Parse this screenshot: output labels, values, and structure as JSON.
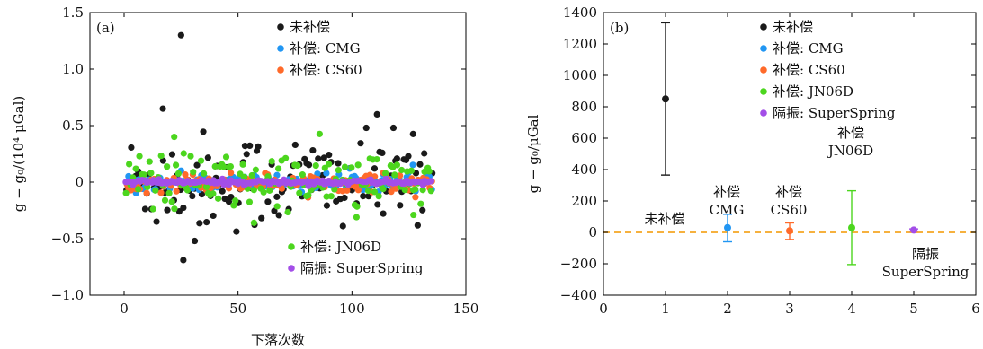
{
  "chart_data": [
    {
      "type": "scatter",
      "panel_label": "(a)",
      "xlabel": "下落次数",
      "ylabel": "g − g₀/(10⁴ μGal)",
      "xlim": [
        -15,
        150
      ],
      "ylim": [
        -1.0,
        1.5
      ],
      "xticks": [
        0,
        50,
        100,
        150
      ],
      "yticks": [
        -1.0,
        -0.5,
        0,
        0.5,
        1.0,
        1.5
      ],
      "ytick_labels": [
        "−1.0",
        "−0.5",
        "0",
        "0.5",
        "1.0",
        "1.5"
      ],
      "legend_top": [
        "未补偿",
        "补偿: CMG",
        "补偿: CS60"
      ],
      "legend_bottom": [
        "补偿: JN06D",
        "隔振: SuperSpring"
      ],
      "series": [
        {
          "name": "未补偿",
          "color": "#1a1a1a",
          "spread": 0.22,
          "extra": [
            [
              25,
              1.3
            ],
            [
              26,
              -0.69
            ],
            [
              31,
              -0.52
            ],
            [
              17,
              0.65
            ],
            [
              111,
              0.6
            ]
          ]
        },
        {
          "name": "补偿: CMG",
          "color": "#2196f3",
          "spread": 0.04,
          "extra": []
        },
        {
          "name": "补偿: CS60",
          "color": "#ff6a2a",
          "spread": 0.04,
          "extra": []
        },
        {
          "name": "补偿: JN06D",
          "color": "#4cd61e",
          "spread": 0.13,
          "extra": [
            [
              22,
              0.4
            ],
            [
              57,
              -0.36
            ],
            [
              102,
              -0.31
            ],
            [
              127,
              -0.29
            ]
          ]
        },
        {
          "name": "隔振: SuperSpring",
          "color": "#a34ee8",
          "spread": 0.012,
          "extra": []
        }
      ],
      "n_drops": 135
    },
    {
      "type": "scatter",
      "panel_label": "(b)",
      "xlabel": "",
      "ylabel": "g − g₀/μGal",
      "xlim": [
        0,
        6
      ],
      "ylim": [
        -400,
        1400
      ],
      "xticks": [
        0,
        1,
        2,
        3,
        4,
        5,
        6
      ],
      "yticks": [
        -400,
        -200,
        0,
        200,
        400,
        600,
        800,
        1000,
        1200,
        1400
      ],
      "ytick_labels": [
        "−400",
        "−200",
        "0",
        "200",
        "400",
        "600",
        "800",
        "1000",
        "1200",
        "1400"
      ],
      "legend": [
        "未补偿",
        "补偿: CMG",
        "补偿: CS60",
        "补偿: JN06D",
        "隔振: SuperSpring"
      ],
      "points": [
        {
          "name": "未补偿",
          "x": 1,
          "y": 850,
          "err_low": 365,
          "err_high": 1335,
          "color": "#1a1a1a",
          "label": [
            "未补偿"
          ]
        },
        {
          "name": "补偿: CMG",
          "x": 2,
          "y": 30,
          "err_low": -60,
          "err_high": 115,
          "color": "#2196f3",
          "label": [
            "补偿",
            "CMG"
          ]
        },
        {
          "name": "补偿: CS60",
          "x": 3,
          "y": 10,
          "err_low": -45,
          "err_high": 60,
          "color": "#ff6a2a",
          "label": [
            "补偿",
            "CS60"
          ]
        },
        {
          "name": "补偿: JN06D",
          "x": 4,
          "y": 30,
          "err_low": -205,
          "err_high": 265,
          "color": "#4cd61e",
          "label": [
            "补偿",
            "JN06D"
          ]
        },
        {
          "name": "隔振: SuperSpring",
          "x": 5,
          "y": 15,
          "err_low": 8,
          "err_high": 22,
          "color": "#a34ee8",
          "label": [
            "隔振",
            "SuperSpring"
          ]
        }
      ],
      "reference_line": {
        "y": 0,
        "color": "#f5a623",
        "style": "dashed"
      }
    }
  ]
}
